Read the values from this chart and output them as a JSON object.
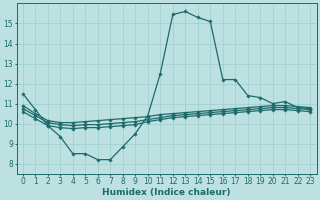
{
  "title": "",
  "xlabel": "Humidex (Indice chaleur)",
  "xlim": [
    -0.5,
    23.5
  ],
  "ylim": [
    7.5,
    16.0
  ],
  "yticks": [
    8,
    9,
    10,
    11,
    12,
    13,
    14,
    15
  ],
  "xticks": [
    0,
    1,
    2,
    3,
    4,
    5,
    6,
    7,
    8,
    9,
    10,
    11,
    12,
    13,
    14,
    15,
    16,
    17,
    18,
    19,
    20,
    21,
    22,
    23
  ],
  "bg_color": "#bde0e0",
  "line_color": "#1e6b6b",
  "grid_color": "#9ecece",
  "curves": [
    {
      "x": [
        0,
        1,
        2,
        3,
        4,
        5,
        6,
        7,
        8,
        9,
        10,
        11,
        12,
        13,
        14,
        15,
        16,
        17,
        18,
        19,
        20,
        21,
        22,
        23
      ],
      "y": [
        11.5,
        10.7,
        9.9,
        9.35,
        8.5,
        8.5,
        8.2,
        8.2,
        8.85,
        9.5,
        10.4,
        12.5,
        15.45,
        15.6,
        15.3,
        15.1,
        12.2,
        12.2,
        11.4,
        11.3,
        11.0,
        11.1,
        10.8,
        10.75
      ]
    },
    {
      "x": [
        0,
        1,
        2,
        3,
        4,
        5,
        6,
        7,
        8,
        9,
        10,
        11,
        12,
        13,
        14,
        15,
        16,
        17,
        18,
        19,
        20,
        21,
        22,
        23
      ],
      "y": [
        10.9,
        10.5,
        10.15,
        10.05,
        10.05,
        10.1,
        10.15,
        10.2,
        10.25,
        10.3,
        10.35,
        10.45,
        10.5,
        10.55,
        10.6,
        10.65,
        10.7,
        10.75,
        10.8,
        10.85,
        10.9,
        10.9,
        10.85,
        10.8
      ]
    },
    {
      "x": [
        0,
        1,
        2,
        3,
        4,
        5,
        6,
        7,
        8,
        9,
        10,
        11,
        12,
        13,
        14,
        15,
        16,
        17,
        18,
        19,
        20,
        21,
        22,
        23
      ],
      "y": [
        10.75,
        10.4,
        10.05,
        9.95,
        9.9,
        9.95,
        9.95,
        10.0,
        10.05,
        10.1,
        10.2,
        10.3,
        10.4,
        10.45,
        10.5,
        10.55,
        10.6,
        10.65,
        10.7,
        10.75,
        10.8,
        10.8,
        10.75,
        10.7
      ]
    },
    {
      "x": [
        0,
        1,
        2,
        3,
        4,
        5,
        6,
        7,
        8,
        9,
        10,
        11,
        12,
        13,
        14,
        15,
        16,
        17,
        18,
        19,
        20,
        21,
        22,
        23
      ],
      "y": [
        10.6,
        10.25,
        9.9,
        9.8,
        9.75,
        9.8,
        9.8,
        9.85,
        9.9,
        9.95,
        10.1,
        10.2,
        10.3,
        10.35,
        10.4,
        10.45,
        10.5,
        10.55,
        10.6,
        10.65,
        10.7,
        10.7,
        10.65,
        10.6
      ]
    }
  ],
  "marker": "D",
  "markersize": 1.8,
  "linewidth": 0.9,
  "tick_fontsize": 5.5,
  "xlabel_fontsize": 6.5
}
